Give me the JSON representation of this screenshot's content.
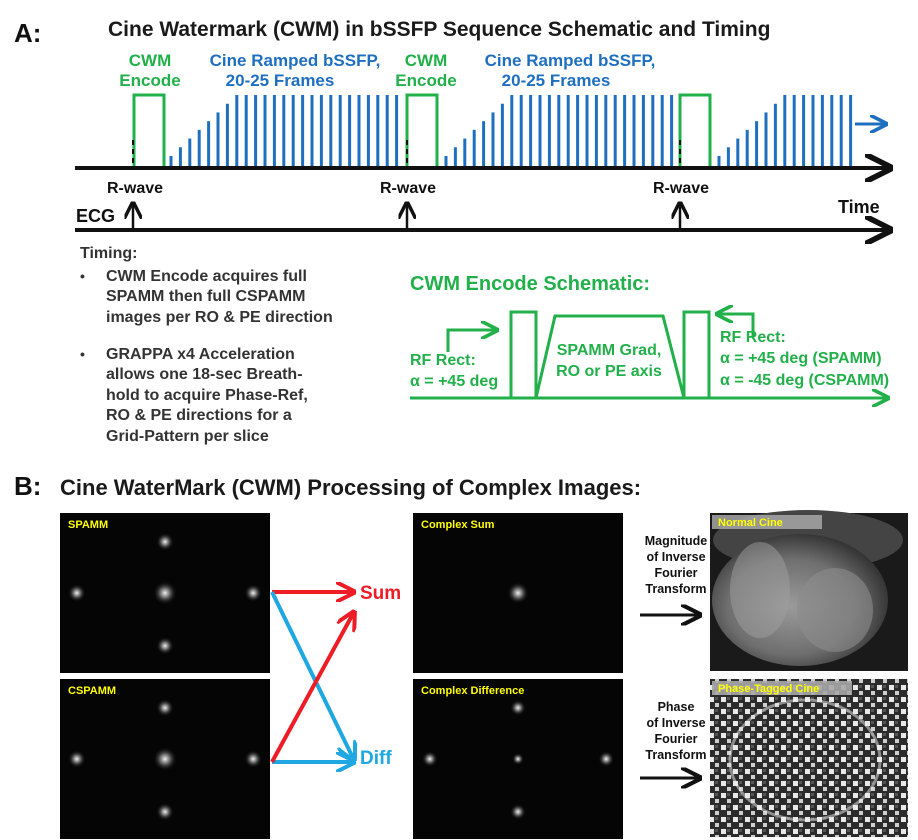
{
  "panel_a": {
    "letter": "A:",
    "title": "Cine Watermark (CWM) in bSSFP Sequence Schematic and Timing",
    "cwm_encode_label": [
      "CWM",
      "Encode"
    ],
    "cine_label": [
      "Cine Ramped bSSFP,",
      "20-25 Frames"
    ],
    "rwave": "R-wave",
    "ecg": "ECG",
    "time": "Time",
    "timing_heading": "Timing:",
    "bullets": [
      [
        "CWM Encode acquires full",
        "SPAMM then full CSPAMM",
        "images per RO & PE direction"
      ],
      [
        "GRAPPA x4 Acceleration",
        "allows one 18-sec Breath-",
        "hold to acquire Phase-Ref,",
        "RO & PE directions for a",
        "Grid-Pattern per slice"
      ]
    ],
    "encode_schematic": {
      "heading": "CWM Encode Schematic:",
      "rf_left": [
        "RF Rect:",
        "α = +45 deg"
      ],
      "grad": [
        "SPAMM Grad,",
        "RO or PE axis"
      ],
      "rf_right": [
        "RF Rect:",
        "α = +45 deg (SPAMM)",
        "α = -45 deg (CSPAMM)"
      ]
    },
    "colors": {
      "green": "#22b04a",
      "blue": "#1f6fc1",
      "black": "#111111"
    }
  },
  "panel_b": {
    "letter": "B:",
    "title": "Cine WaterMark (CWM) Processing of Complex Images:",
    "images": {
      "spamm": "SPAMM",
      "cspamm": "CSPAMM",
      "complex_sum": "Complex Sum",
      "complex_diff": "Complex Difference",
      "normal_cine": "Normal Cine",
      "phase_tagged": "Phase-Tagged Cine"
    },
    "sum_label": "Sum",
    "diff_label": "Diff",
    "magnitude_text": [
      "Magnitude",
      "of Inverse",
      "Fourier",
      "Transform"
    ],
    "phase_text": [
      "Phase",
      "of Inverse",
      "Fourier",
      "Transform"
    ],
    "colors": {
      "red": "#ee1c24",
      "cyan": "#1ea7e1",
      "label_yellow": "#ffff00"
    }
  }
}
